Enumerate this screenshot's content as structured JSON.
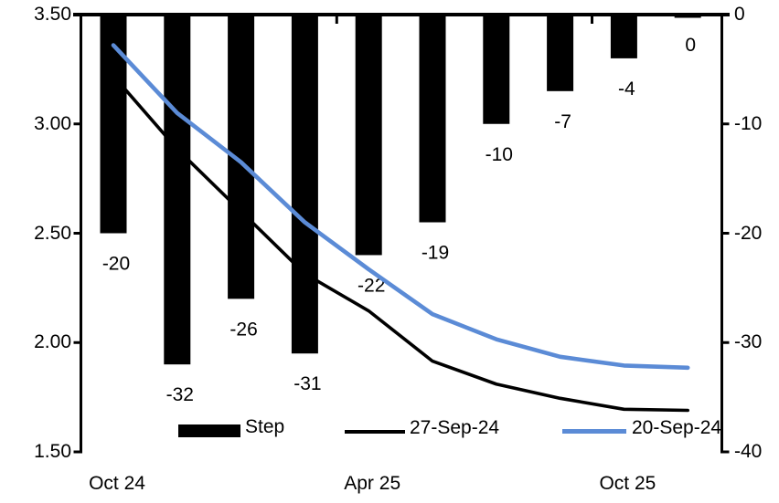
{
  "chart_data": {
    "type": "combo",
    "title": "",
    "categories_count": 10,
    "x_axis": {
      "tick_labels": [
        {
          "category_index": 0,
          "label": "Oct 24"
        },
        {
          "category_index": 4,
          "label": "Apr 25"
        },
        {
          "category_index": 8,
          "label": "Oct 25"
        }
      ],
      "boundary_ticks_at": [
        3.5,
        7.5
      ]
    },
    "left_axis": {
      "ticks": [
        "3.50",
        "3.00",
        "2.50",
        "2.00",
        "1.50"
      ],
      "range": [
        1.5,
        3.5
      ]
    },
    "right_axis": {
      "ticks": [
        "0",
        "-10",
        "-20",
        "-30",
        "-40"
      ],
      "range": [
        -40,
        0
      ]
    },
    "series": [
      {
        "name": "Step",
        "type": "bar",
        "axis": "right",
        "color": "#000000",
        "values": [
          -20,
          -32,
          -26,
          -31,
          -22,
          -19,
          -10,
          -7,
          -4,
          0
        ],
        "data_labels": [
          "-20",
          "-32",
          "-26",
          "-31",
          "-22",
          "-19",
          "-10",
          "-7",
          "-4",
          "0"
        ]
      },
      {
        "name": "27-Sep-24",
        "type": "line",
        "axis": "right",
        "color": "#000000",
        "values": [
          -5.6,
          -12.3,
          -18.0,
          -23.7,
          -27.1,
          -31.7,
          -33.8,
          -35.1,
          -36.1,
          -36.2
        ]
      },
      {
        "name": "20-Sep-24",
        "type": "line",
        "axis": "right",
        "color": "#5B8BD6",
        "values": [
          -2.8,
          -9.0,
          -13.5,
          -19.0,
          -23.3,
          -27.4,
          -29.7,
          -31.3,
          -32.1,
          -32.3
        ]
      }
    ],
    "legend": {
      "position": "bottom-inside",
      "entries": [
        "Step",
        "27-Sep-24",
        "20-Sep-24"
      ]
    },
    "layout_hints": {
      "gridlines": false,
      "bars_hang_from_zero_line_at_top": true
    }
  }
}
